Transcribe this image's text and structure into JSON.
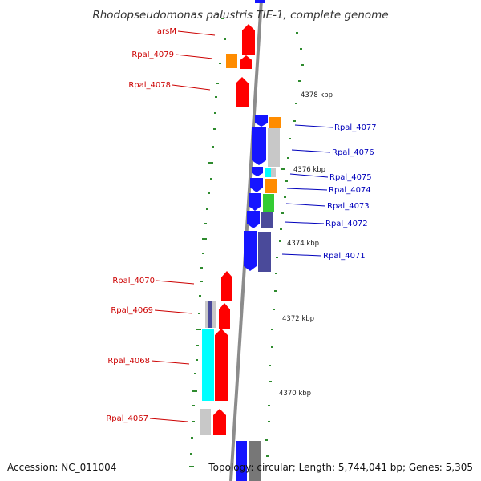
{
  "title": "Rhodopseudomonas palustris TIE-1, complete genome",
  "footer": {
    "accession": "Accession: NC_011004",
    "topology": "Topology: circular; Length: 5,744,041 bp; Genes: 5,305"
  },
  "colors": {
    "backbone": "#8c8c8c",
    "forward_label": "#cc0000",
    "reverse_label": "#0000bb",
    "gc_dots": "#2e8b2e",
    "red": "#ff0000",
    "blue": "#1515ff",
    "orange": "#ff8c00",
    "gray": "#c8c8c8",
    "cyan": "#00ffff",
    "green": "#33cc33",
    "navy": "#4a4a9a",
    "darkgray": "#777777"
  },
  "ticks": [
    "4378 kbp",
    "4376 kbp",
    "4374 kbp",
    "4372 kbp",
    "4370 kbp"
  ],
  "genes": {
    "forward": [
      "arsM",
      "Rpal_4079",
      "Rpal_4078",
      "Rpal_4070",
      "Rpal_4069",
      "Rpal_4068",
      "Rpal_4067"
    ],
    "reverse": [
      "Rpal_4077",
      "Rpal_4076",
      "Rpal_4075",
      "Rpal_4074",
      "Rpal_4073",
      "Rpal_4072",
      "Rpal_4071"
    ]
  }
}
